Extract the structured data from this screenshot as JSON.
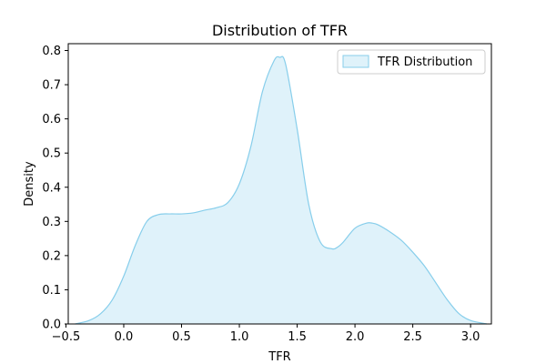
{
  "chart_data": {
    "type": "area",
    "title": "Distribution of TFR",
    "xlabel": "TFR",
    "ylabel": "Density",
    "xlim": [
      -0.48,
      3.18
    ],
    "ylim": [
      0,
      0.82
    ],
    "xticks": [
      -0.5,
      0.0,
      0.5,
      1.0,
      1.5,
      2.0,
      2.5,
      3.0
    ],
    "xtick_labels": [
      "−0.5",
      "0.0",
      "0.5",
      "1.0",
      "1.5",
      "2.0",
      "2.5",
      "3.0"
    ],
    "yticks": [
      0.0,
      0.1,
      0.2,
      0.3,
      0.4,
      0.5,
      0.6,
      0.7,
      0.8
    ],
    "ytick_labels": [
      "0.0",
      "0.1",
      "0.2",
      "0.3",
      "0.4",
      "0.5",
      "0.6",
      "0.7",
      "0.8"
    ],
    "grid": false,
    "legend_position": "top-right",
    "series": [
      {
        "name": "TFR Distribution",
        "line_color": "#87ceeb",
        "fill_color": "#87ceeb",
        "fill_opacity": 0.27,
        "x": [
          -0.42,
          -0.3,
          -0.2,
          -0.1,
          0.0,
          0.1,
          0.2,
          0.3,
          0.4,
          0.5,
          0.6,
          0.7,
          0.8,
          0.9,
          1.0,
          1.1,
          1.2,
          1.3,
          1.35,
          1.4,
          1.5,
          1.6,
          1.7,
          1.8,
          1.85,
          1.9,
          2.0,
          2.1,
          2.15,
          2.2,
          2.3,
          2.4,
          2.5,
          2.6,
          2.7,
          2.8,
          2.9,
          3.0,
          3.14
        ],
        "y": [
          0.0,
          0.01,
          0.03,
          0.07,
          0.14,
          0.23,
          0.3,
          0.32,
          0.322,
          0.322,
          0.325,
          0.333,
          0.34,
          0.355,
          0.41,
          0.52,
          0.68,
          0.77,
          0.78,
          0.76,
          0.57,
          0.35,
          0.24,
          0.22,
          0.225,
          0.24,
          0.28,
          0.295,
          0.295,
          0.29,
          0.27,
          0.245,
          0.21,
          0.17,
          0.12,
          0.07,
          0.03,
          0.01,
          0.0
        ]
      }
    ]
  }
}
